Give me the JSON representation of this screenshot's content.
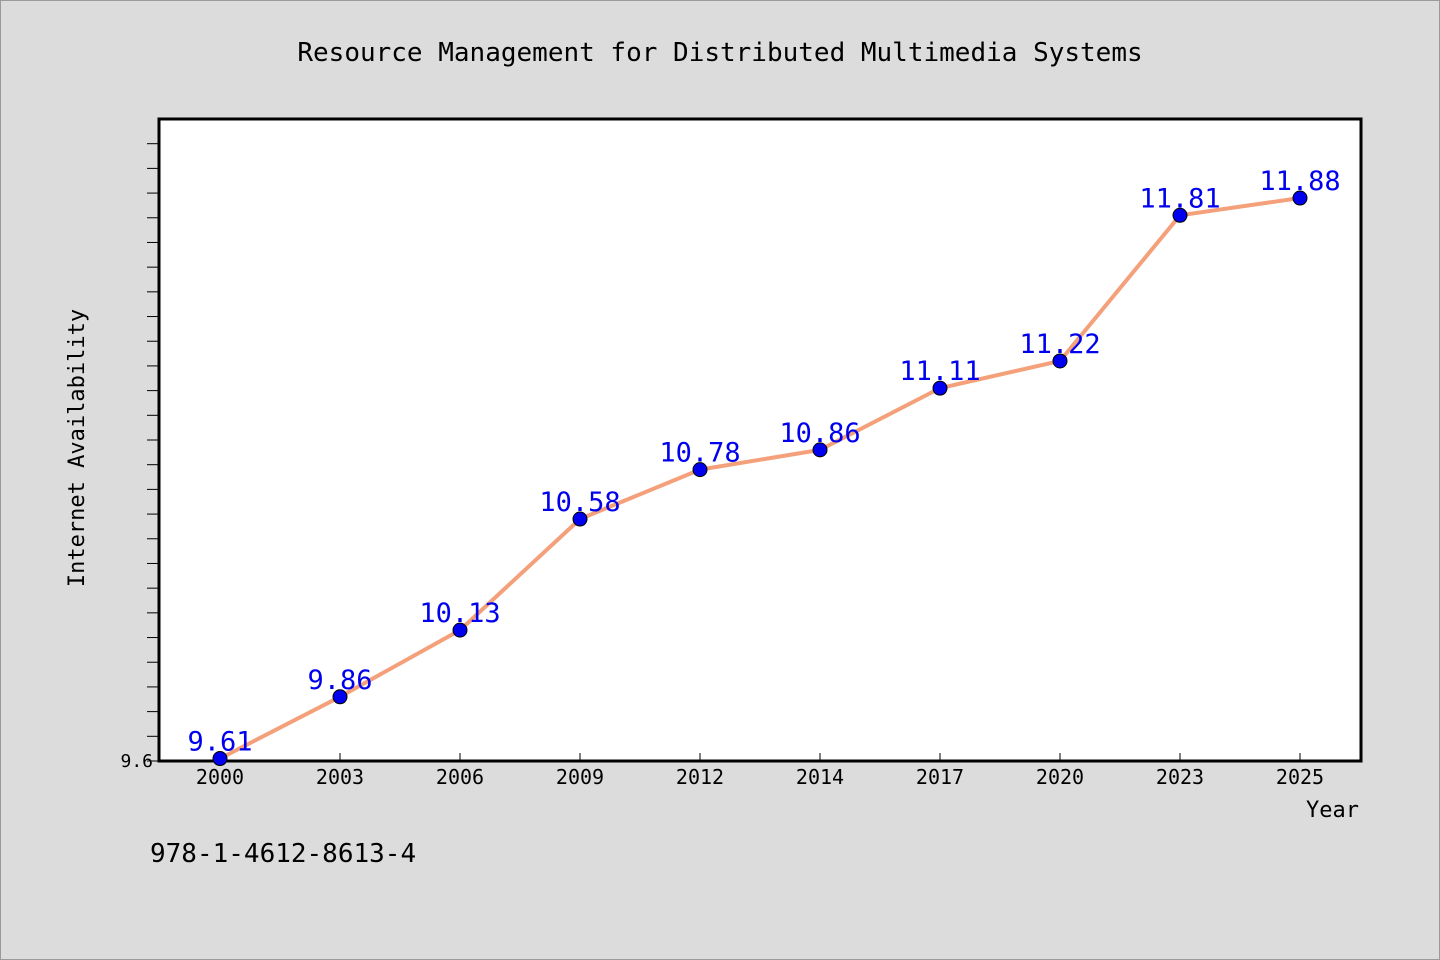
{
  "chart_data": {
    "type": "line",
    "title": "Resource Management for Distributed Multimedia Systems",
    "xlabel": "Year",
    "ylabel": "Internet Availability",
    "categories": [
      "2000",
      "2003",
      "2006",
      "2009",
      "2012",
      "2014",
      "2017",
      "2020",
      "2023",
      "2025"
    ],
    "series": [
      {
        "values": [
          9.61,
          9.86,
          10.13,
          10.58,
          10.78,
          10.86,
          11.11,
          11.22,
          11.81,
          11.88
        ],
        "data_labels": [
          "9.61",
          "9.86",
          "10.13",
          "10.58",
          "10.78",
          "10.86",
          "11.11",
          "11.22",
          "11.81",
          "11.88"
        ]
      }
    ],
    "ylim": [
      9.6,
      12.2
    ],
    "y_tick_labels": [
      "9.6"
    ],
    "grid": false,
    "line_color": "#f4a07a",
    "marker_color": "#0000ee",
    "label_color": "#0000ee"
  },
  "footer": {
    "isbn": "978-1-4612-8613-4"
  },
  "colors": {
    "background": "#dcdcdc",
    "plot_background": "#ffffff",
    "axis": "#000000"
  }
}
